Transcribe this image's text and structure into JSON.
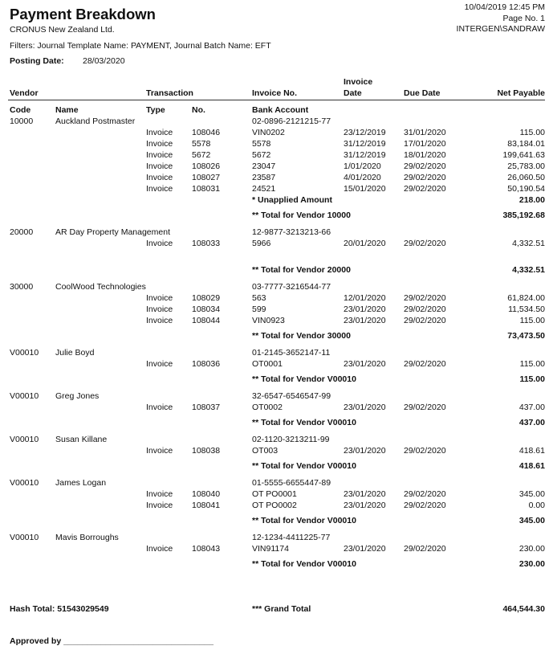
{
  "report": {
    "title": "Payment Breakdown",
    "company": "CRONUS New Zealand Ltd.",
    "datetime": "10/04/2019 12:45 PM",
    "page": "Page No. 1",
    "user": "INTERGEN\\SANDRAW",
    "filters": "Filters: Journal Template Name: PAYMENT, Journal Batch Name: EFT",
    "posting_date_label": "Posting Date:",
    "posting_date": "28/03/2020"
  },
  "columns": {
    "vendor": "Vendor",
    "transaction": "Transaction",
    "invoice_no": "Invoice No.",
    "invoice_date_1": "Invoice",
    "invoice_date_2": "Date",
    "due_date": "Due Date",
    "net_payable": "Net Payable",
    "code": "Code",
    "name": "Name",
    "type": "Type",
    "no": "No.",
    "bank_account": "Bank Account"
  },
  "vendors": [
    {
      "code": "10000",
      "name": "Auckland Postmaster",
      "bank_account": "02-0896-2121215-77",
      "lines": [
        {
          "type": "Invoice",
          "no": "108046",
          "invoice_no": "VIN0202",
          "invoice_date": "23/12/2019",
          "due_date": "31/01/2020",
          "net": "115.00"
        },
        {
          "type": "Invoice",
          "no": "5578",
          "invoice_no": "5578",
          "invoice_date": "31/12/2019",
          "due_date": "17/01/2020",
          "net": "83,184.01"
        },
        {
          "type": "Invoice",
          "no": "5672",
          "invoice_no": "5672",
          "invoice_date": "31/12/2019",
          "due_date": "18/01/2020",
          "net": "199,641.63"
        },
        {
          "type": "Invoice",
          "no": "108026",
          "invoice_no": "23047",
          "invoice_date": "1/01/2020",
          "due_date": "29/02/2020",
          "net": "25,783.00"
        },
        {
          "type": "Invoice",
          "no": "108027",
          "invoice_no": "23587",
          "invoice_date": "4/01/2020",
          "due_date": "29/02/2020",
          "net": "26,060.50"
        },
        {
          "type": "Invoice",
          "no": "108031",
          "invoice_no": "24521",
          "invoice_date": "15/01/2020",
          "due_date": "29/02/2020",
          "net": "50,190.54"
        }
      ],
      "unapplied": {
        "label": "* Unapplied Amount",
        "amount": "218.00"
      },
      "total_label": "** Total for Vendor 10000",
      "total": "385,192.68"
    },
    {
      "code": "20000",
      "name": "AR Day Property Management",
      "bank_account": "12-9877-3213213-66",
      "lines": [
        {
          "type": "Invoice",
          "no": "108033",
          "invoice_no": "5966",
          "invoice_date": "20/01/2020",
          "due_date": "29/02/2020",
          "net": "4,332.51"
        }
      ],
      "total_label": "** Total for Vendor 20000",
      "total": "4,332.51"
    },
    {
      "code": "30000",
      "name": "CoolWood Technologies",
      "bank_account": "03-7777-3216544-77",
      "lines": [
        {
          "type": "Invoice",
          "no": "108029",
          "invoice_no": "563",
          "invoice_date": "12/01/2020",
          "due_date": "29/02/2020",
          "net": "61,824.00"
        },
        {
          "type": "Invoice",
          "no": "108034",
          "invoice_no": "599",
          "invoice_date": "23/01/2020",
          "due_date": "29/02/2020",
          "net": "11,534.50"
        },
        {
          "type": "Invoice",
          "no": "108044",
          "invoice_no": "VIN0923",
          "invoice_date": "23/01/2020",
          "due_date": "29/02/2020",
          "net": "115.00"
        }
      ],
      "total_label": "** Total for Vendor 30000",
      "total": "73,473.50"
    },
    {
      "code": "V00010",
      "name": "Julie Boyd",
      "bank_account": "01-2145-3652147-11",
      "lines": [
        {
          "type": "Invoice",
          "no": "108036",
          "invoice_no": "OT0001",
          "invoice_date": "23/01/2020",
          "due_date": "29/02/2020",
          "net": "115.00"
        }
      ],
      "total_label": "** Total for Vendor V00010",
      "total": "115.00"
    },
    {
      "code": "V00010",
      "name": "Greg Jones",
      "bank_account": "32-6547-6546547-99",
      "lines": [
        {
          "type": "Invoice",
          "no": "108037",
          "invoice_no": "OT0002",
          "invoice_date": "23/01/2020",
          "due_date": "29/02/2020",
          "net": "437.00"
        }
      ],
      "total_label": "** Total for Vendor V00010",
      "total": "437.00"
    },
    {
      "code": "V00010",
      "name": "Susan Killane",
      "bank_account": "02-1120-3213211-99",
      "lines": [
        {
          "type": "Invoice",
          "no": "108038",
          "invoice_no": "OT003",
          "invoice_date": "23/01/2020",
          "due_date": "29/02/2020",
          "net": "418.61"
        }
      ],
      "total_label": "** Total for Vendor V00010",
      "total": "418.61"
    },
    {
      "code": "V00010",
      "name": "James Logan",
      "bank_account": "01-5555-6655447-89",
      "lines": [
        {
          "type": "Invoice",
          "no": "108040",
          "invoice_no": "OT PO0001",
          "invoice_date": "23/01/2020",
          "due_date": "29/02/2020",
          "net": "345.00"
        },
        {
          "type": "Invoice",
          "no": "108041",
          "invoice_no": "OT PO0002",
          "invoice_date": "23/01/2020",
          "due_date": "29/02/2020",
          "net": "0.00"
        }
      ],
      "total_label": "** Total for Vendor V00010",
      "total": "345.00"
    },
    {
      "code": "V00010",
      "name": "Mavis Borroughs",
      "bank_account": "12-1234-4411225-77",
      "lines": [
        {
          "type": "Invoice",
          "no": "108043",
          "invoice_no": "VIN91174",
          "invoice_date": "23/01/2020",
          "due_date": "29/02/2020",
          "net": "230.00"
        }
      ],
      "total_label": "** Total for Vendor V00010",
      "total": "230.00"
    }
  ],
  "footer": {
    "hash_total": "Hash Total: 51543029549",
    "grand_total_label": "*** Grand Total",
    "grand_total": "464,544.30",
    "approved_by": "Approved by ________________________________"
  }
}
